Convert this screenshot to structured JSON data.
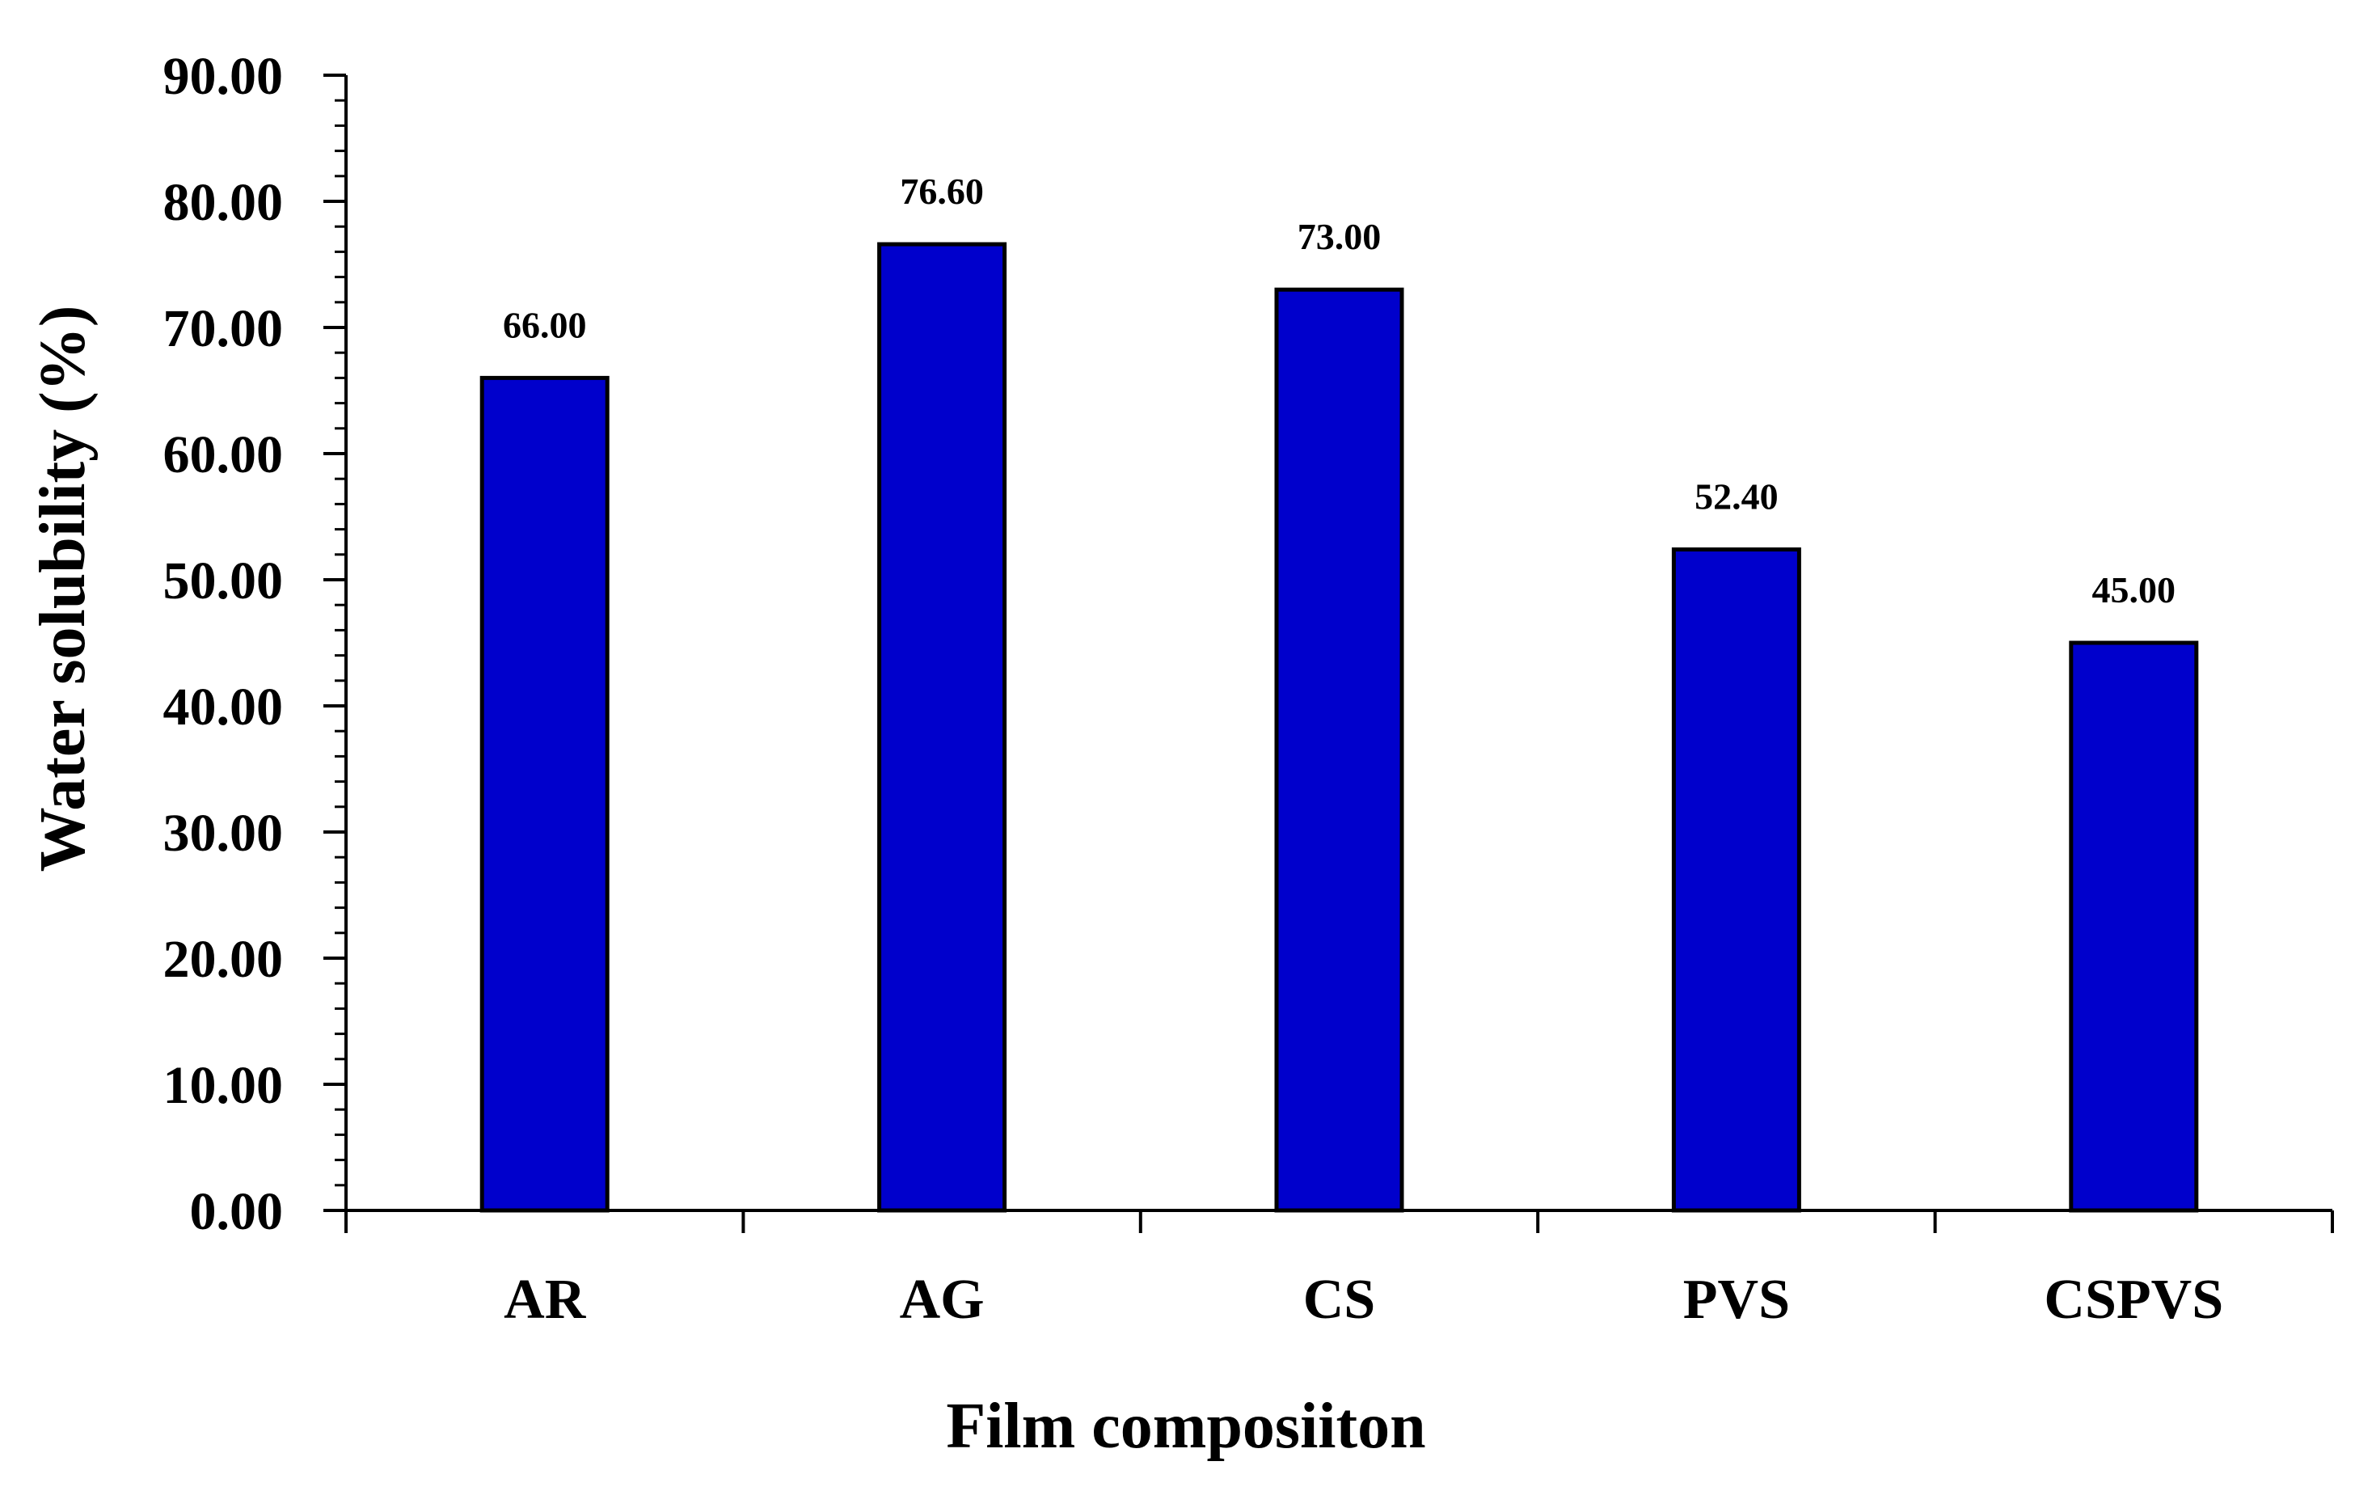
{
  "chart_data": {
    "type": "bar",
    "categories": [
      "AR",
      "AG",
      "CS",
      "PVS",
      "CSPVS"
    ],
    "values": [
      66.0,
      76.6,
      73.0,
      52.4,
      45.0
    ],
    "value_labels": [
      "66.00",
      "76.60",
      "73.00",
      "52.40",
      "45.00"
    ],
    "xlabel": "Film composiiton",
    "ylabel": "Water solubility (%)",
    "ylim": [
      0,
      90
    ],
    "y_major_step": 10,
    "y_minor_step": 2,
    "y_tick_labels": [
      "0.00",
      "10.00",
      "20.00",
      "30.00",
      "40.00",
      "50.00",
      "60.00",
      "70.00",
      "80.00",
      "90.00"
    ],
    "grid": false,
    "legend": "none",
    "colors": {
      "bar_fill": "#0000CC",
      "bar_stroke": "#000000",
      "axis": "#000000"
    }
  }
}
